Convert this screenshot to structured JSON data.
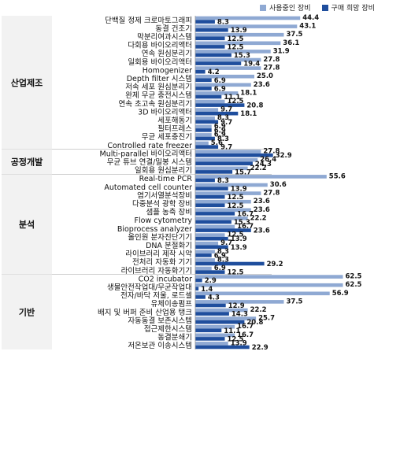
{
  "chart_data": {
    "type": "bar",
    "orientation": "horizontal",
    "series": [
      {
        "name": "사용중인 장비",
        "color": "#8fa9d3"
      },
      {
        "name": "구매 희망 장비",
        "color": "#1f4e9d"
      }
    ],
    "groups": [
      {
        "name": "산업제조",
        "items": [
          {
            "label": "단백질 정제 크로마토그래피",
            "values": [
              44.4,
              8.3
            ]
          },
          {
            "label": "동결 건조기",
            "values": [
              43.1,
              13.9
            ]
          },
          {
            "label": "막분리여과시스템",
            "values": [
              37.5,
              12.5
            ]
          },
          {
            "label": "다회용 바이오리액터",
            "values": [
              36.1,
              12.5
            ]
          },
          {
            "label": "연속 원심분리기",
            "values": [
              31.9,
              15.3
            ]
          },
          {
            "label": "일회용 바이오리액터",
            "values": [
              27.8,
              19.4
            ]
          },
          {
            "label": "Homogenizer",
            "values": [
              27.8,
              4.2
            ]
          },
          {
            "label": "Depth filter 시스템",
            "values": [
              25.0,
              6.9
            ]
          },
          {
            "label": "저속 세포 원심분리기",
            "values": [
              23.6,
              6.9
            ]
          },
          {
            "label": "완제 무균 충전시스템",
            "values": [
              18.1,
              11.1
            ]
          },
          {
            "label": "연속 초고속 원심분리기",
            "values": [
              12.5,
              20.8
            ]
          },
          {
            "label": "3D 바이오리액터",
            "values": [
              9.7,
              18.1
            ]
          },
          {
            "label": "세포해동기",
            "values": [
              8.3,
              9.7
            ]
          },
          {
            "label": "필터프레스",
            "values": [
              6.9,
              6.9
            ]
          },
          {
            "label": "무균 세포충진기",
            "values": [
              6.9,
              8.3
            ]
          },
          {
            "label": "Controlled rate freezer",
            "values": [
              5.6,
              9.7
            ]
          }
        ]
      },
      {
        "name": "공정개발",
        "items": [
          {
            "label": "Multi-parallel 바이오리액터",
            "values": [
              27.8,
              32.9
            ]
          },
          {
            "label": "무균 튜브 연결/밀봉 시스템",
            "values": [
              26.4,
              24.3
            ]
          },
          {
            "label": "일회용 원심분리기",
            "values": [
              22.2,
              15.7
            ]
          }
        ]
      },
      {
        "name": "분석",
        "items": [
          {
            "label": "Real-time PCR",
            "values": [
              55.6,
              8.3
            ]
          },
          {
            "label": "Automated cell counter",
            "values": [
              30.6,
              13.9
            ]
          },
          {
            "label": "염기서열분석장비",
            "values": [
              27.8,
              12.5
            ]
          },
          {
            "label": "다중분석 광학 장비",
            "values": [
              23.6,
              12.5
            ]
          },
          {
            "label": "샘플 농축 장비",
            "values": [
              23.6,
              16.7
            ]
          },
          {
            "label": "Flow cytometry",
            "values": [
              22.2,
              15.3
            ]
          },
          {
            "label": "Bioprocess analyzer",
            "values": [
              16.7,
              23.6
            ]
          },
          {
            "label": "올인원 분자진단기기",
            "values": [
              12.5,
              13.9
            ]
          },
          {
            "label": "DNA 분절화기",
            "values": [
              9.7,
              13.9
            ]
          },
          {
            "label": "라이브러리 제작 시약",
            "values": [
              8.3,
              6.9
            ]
          },
          {
            "label": "전처리 자동화 기기",
            "values": [
              8.3,
              29.2
            ]
          },
          {
            "label": "라이브러리 자동화기기",
            "values": [
              6.9,
              12.5
            ]
          }
        ]
      },
      {
        "name": "기반",
        "items": [
          {
            "label": "CO2 incubator",
            "values": [
              62.5,
              2.9
            ]
          },
          {
            "label": "생물안전작업대/무균작업대",
            "values": [
              62.5,
              1.4
            ]
          },
          {
            "label": "전자/바닥 저울, 로드셀",
            "values": [
              56.9,
              4.3
            ]
          },
          {
            "label": "유체이송펌프",
            "values": [
              37.5,
              12.9
            ]
          },
          {
            "label": "배지 및 버퍼 준비 산업용 탱크",
            "values": [
              22.2,
              14.3
            ]
          },
          {
            "label": "자동동결 보존시스템",
            "values": [
              25.7,
              20.8
            ]
          },
          {
            "label": "접근제한시스템",
            "values": [
              16.7,
              11.1
            ]
          },
          {
            "label": "동결분쇄기",
            "values": [
              16.7,
              12.5
            ]
          },
          {
            "label": "저온보관 이송시스템",
            "values": [
              13.9,
              22.9
            ]
          }
        ]
      }
    ],
    "xlim": [
      0,
      66
    ]
  }
}
